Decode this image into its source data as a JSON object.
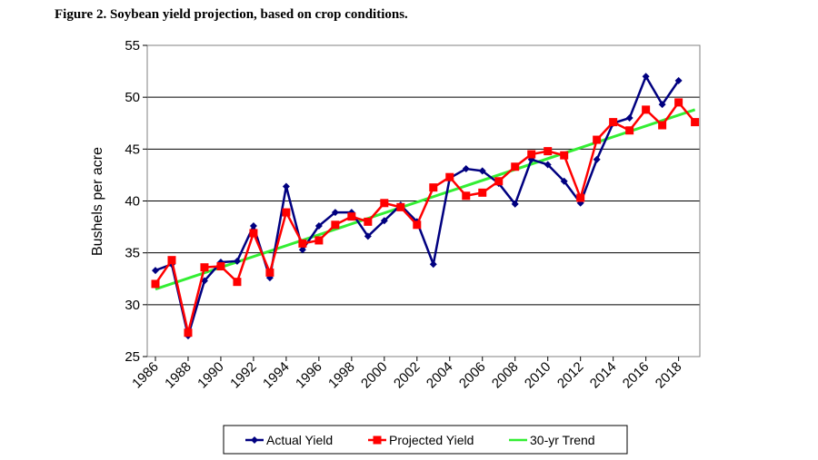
{
  "chart_data": {
    "type": "line",
    "title": "Figure 2. Soybean yield projection, based on crop conditions.",
    "ylabel": "Bushels per acre",
    "xlabel": "",
    "ylim": [
      25,
      55
    ],
    "yticks": [
      25,
      30,
      35,
      40,
      45,
      50,
      55
    ],
    "xlim": [
      1986,
      2019
    ],
    "xtick_labels": [
      "1986",
      "1988",
      "1990",
      "1992",
      "1994",
      "1996",
      "1998",
      "2000",
      "2002",
      "2004",
      "2006",
      "2008",
      "2010",
      "2012",
      "2014",
      "2016",
      "2018"
    ],
    "grid": "horizontal",
    "legend_position": "bottom",
    "x": [
      1986,
      1987,
      1988,
      1989,
      1990,
      1991,
      1992,
      1993,
      1994,
      1995,
      1996,
      1997,
      1998,
      1999,
      2000,
      2001,
      2002,
      2003,
      2004,
      2005,
      2006,
      2007,
      2008,
      2009,
      2010,
      2011,
      2012,
      2013,
      2014,
      2015,
      2016,
      2017,
      2018,
      2019
    ],
    "series": [
      {
        "name": "Actual Yield",
        "color": "#000080",
        "marker": "diamond",
        "values": [
          33.3,
          33.9,
          27.0,
          32.3,
          34.1,
          34.2,
          37.6,
          32.6,
          41.4,
          35.3,
          37.6,
          38.9,
          38.9,
          36.6,
          38.1,
          39.6,
          38.0,
          33.9,
          42.2,
          43.1,
          42.9,
          41.7,
          39.7,
          44.0,
          43.5,
          41.9,
          39.8,
          44.0,
          47.5,
          48.0,
          52.0,
          49.3,
          51.6,
          null
        ]
      },
      {
        "name": "Projected Yield",
        "color": "#ff0000",
        "marker": "square",
        "values": [
          32.0,
          34.3,
          27.3,
          33.6,
          33.7,
          32.2,
          36.9,
          33.1,
          38.9,
          35.9,
          36.2,
          37.7,
          38.5,
          38.0,
          39.8,
          39.4,
          37.7,
          41.3,
          42.3,
          40.5,
          40.8,
          41.9,
          43.3,
          44.5,
          44.8,
          44.4,
          40.3,
          45.9,
          47.6,
          46.8,
          48.8,
          47.3,
          49.5,
          47.6
        ]
      },
      {
        "name": "30-yr Trend",
        "color": "#33ee33",
        "marker": "none",
        "values": [
          31.5,
          null,
          null,
          null,
          null,
          null,
          null,
          null,
          null,
          null,
          null,
          null,
          null,
          null,
          null,
          null,
          null,
          null,
          null,
          null,
          null,
          null,
          null,
          null,
          null,
          null,
          null,
          null,
          null,
          null,
          null,
          null,
          null,
          48.8
        ]
      }
    ]
  }
}
